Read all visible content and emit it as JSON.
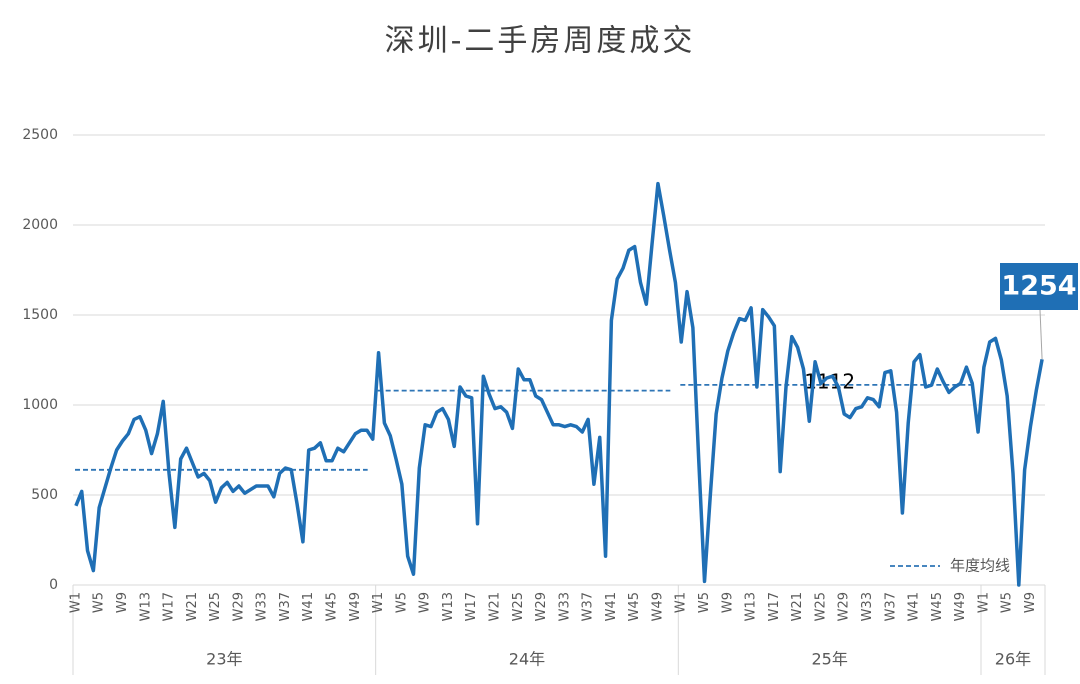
{
  "chart_data": {
    "type": "line",
    "title": "深圳-二手房周度成交",
    "categories": [
      "W1",
      null,
      null,
      null,
      "W5",
      null,
      null,
      null,
      "W9",
      null,
      null,
      null,
      "W13",
      null,
      null,
      null,
      "W17",
      null,
      null,
      null,
      "W21",
      null,
      null,
      null,
      "W25",
      null,
      null,
      null,
      "W29",
      null,
      null,
      null,
      "W33",
      null,
      null,
      null,
      "W37",
      null,
      null,
      null,
      "W41",
      null,
      null,
      null,
      "W45",
      null,
      null,
      null,
      "W49",
      null,
      null,
      null,
      "W1",
      null,
      null,
      null,
      "W5",
      null,
      null,
      null,
      "W9",
      null,
      null,
      null,
      "W13",
      null,
      null,
      null,
      "W17",
      null,
      null,
      null,
      "W21",
      null,
      null,
      null,
      "W25",
      null,
      null,
      null,
      "W29",
      null,
      null,
      null,
      "W33",
      null,
      null,
      null,
      "W37",
      null,
      null,
      null,
      "W41",
      null,
      null,
      null,
      "W45",
      null,
      null,
      null,
      "W49",
      null,
      null,
      null,
      "W1",
      null,
      null,
      null,
      "W5",
      null,
      null,
      null,
      "W9",
      null,
      null,
      null,
      "W13",
      null,
      null,
      null,
      "W17",
      null,
      null,
      null,
      "W21",
      null,
      null,
      null,
      "W25",
      null,
      null,
      null,
      "W29",
      null,
      null,
      null,
      "W33",
      null,
      null,
      null,
      "W37",
      null,
      null,
      null,
      "W41",
      null,
      null,
      null,
      "W45",
      null,
      null,
      null,
      "W49",
      null,
      null,
      null,
      "W1",
      null,
      null,
      null,
      "W5",
      null,
      null,
      null,
      "W9",
      null,
      null
    ],
    "groups": [
      "23年",
      "24年",
      "25年",
      "26年"
    ],
    "series": [
      {
        "color": "#1f6fb5",
        "values": [
          440,
          520,
          190,
          80,
          430,
          540,
          650,
          750,
          800,
          840,
          920,
          935,
          860,
          730,
          840,
          1020,
          620,
          320,
          700,
          760,
          680,
          600,
          620,
          580,
          460,
          540,
          570,
          520,
          550,
          510,
          530,
          550,
          550,
          550,
          490,
          620,
          650,
          640,
          450,
          240,
          750,
          760,
          790,
          690,
          690,
          760,
          740,
          790,
          840,
          860,
          860,
          810,
          1290,
          900,
          830,
          700,
          560,
          160,
          60,
          650,
          890,
          880,
          960,
          980,
          920,
          770,
          1100,
          1050,
          1040,
          340,
          1160,
          1060,
          980,
          990,
          960,
          870,
          1200,
          1140,
          1140,
          1050,
          1030,
          960,
          890,
          890,
          880,
          890,
          880,
          850,
          920,
          560,
          820,
          160,
          1470,
          1700,
          1760,
          1860,
          1880,
          1680,
          1560,
          1900,
          2230,
          2050,
          1860,
          1680,
          1350,
          1630,
          1430,
          700,
          20,
          500,
          950,
          1150,
          1300,
          1400,
          1480,
          1470,
          1540,
          1100,
          1530,
          1490,
          1440,
          630,
          1100,
          1380,
          1320,
          1200,
          910,
          1240,
          1120,
          1150,
          1160,
          1100,
          950,
          930,
          980,
          990,
          1040,
          1030,
          990,
          1180,
          1190,
          960,
          400,
          900,
          1240,
          1280,
          1100,
          1110,
          1200,
          1130,
          1070,
          1100,
          1120,
          1210,
          1120,
          850,
          1210,
          1350,
          1370,
          1250,
          1050,
          620,
          0,
          640,
          880,
          1080,
          1254
        ]
      }
    ],
    "end_label": "1254",
    "average": {
      "name": "年度均线",
      "color": "#2e75b6",
      "values": [
        640,
        1080,
        1112,
        null
      ],
      "value_labels": [
        null,
        null,
        "1112",
        null
      ]
    },
    "ylim": [
      0,
      2500
    ],
    "yticks": [
      0,
      500,
      1000,
      1500,
      2000,
      2500
    ],
    "grid": true,
    "legend": "lower right"
  }
}
